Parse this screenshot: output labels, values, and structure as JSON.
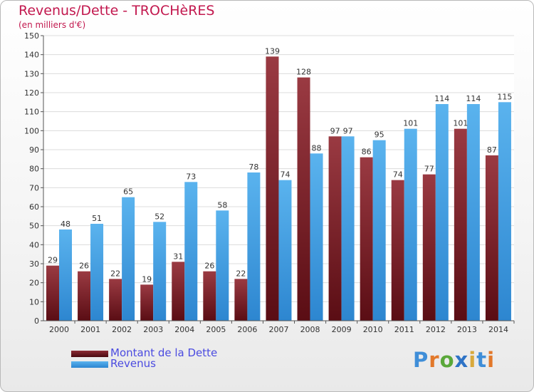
{
  "chart_data": {
    "type": "bar",
    "title": "Revenus/Dette - TROCHèRES",
    "subtitle": "(en milliers d'€)",
    "xlabel": "",
    "ylabel": "",
    "ylim": [
      0,
      150
    ],
    "yticks": [
      0,
      10,
      20,
      30,
      40,
      50,
      60,
      70,
      80,
      90,
      100,
      110,
      120,
      130,
      140,
      150
    ],
    "grid": true,
    "legend_position": "bottom-left",
    "categories": [
      "2000",
      "2001",
      "2002",
      "2003",
      "2004",
      "2005",
      "2006",
      "2007",
      "2008",
      "2009",
      "2010",
      "2011",
      "2012",
      "2013",
      "2014"
    ],
    "series": [
      {
        "name": "Montant de la Dette",
        "color": "#8c2a33",
        "values": [
          29,
          26,
          22,
          19,
          31,
          26,
          22,
          139,
          128,
          97,
          86,
          74,
          77,
          101,
          87
        ]
      },
      {
        "name": "Revenus",
        "color": "#4aa6e6",
        "values": [
          48,
          51,
          65,
          52,
          73,
          58,
          78,
          74,
          88,
          97,
          95,
          101,
          114,
          114,
          115
        ]
      }
    ]
  },
  "brand": {
    "logo_text": "Proxiti",
    "colors": [
      "#3f8ed8",
      "#e2782a",
      "#5aa83a",
      "#2e73c6",
      "#d9a93b",
      "#3f8ed8",
      "#e2782a"
    ]
  }
}
